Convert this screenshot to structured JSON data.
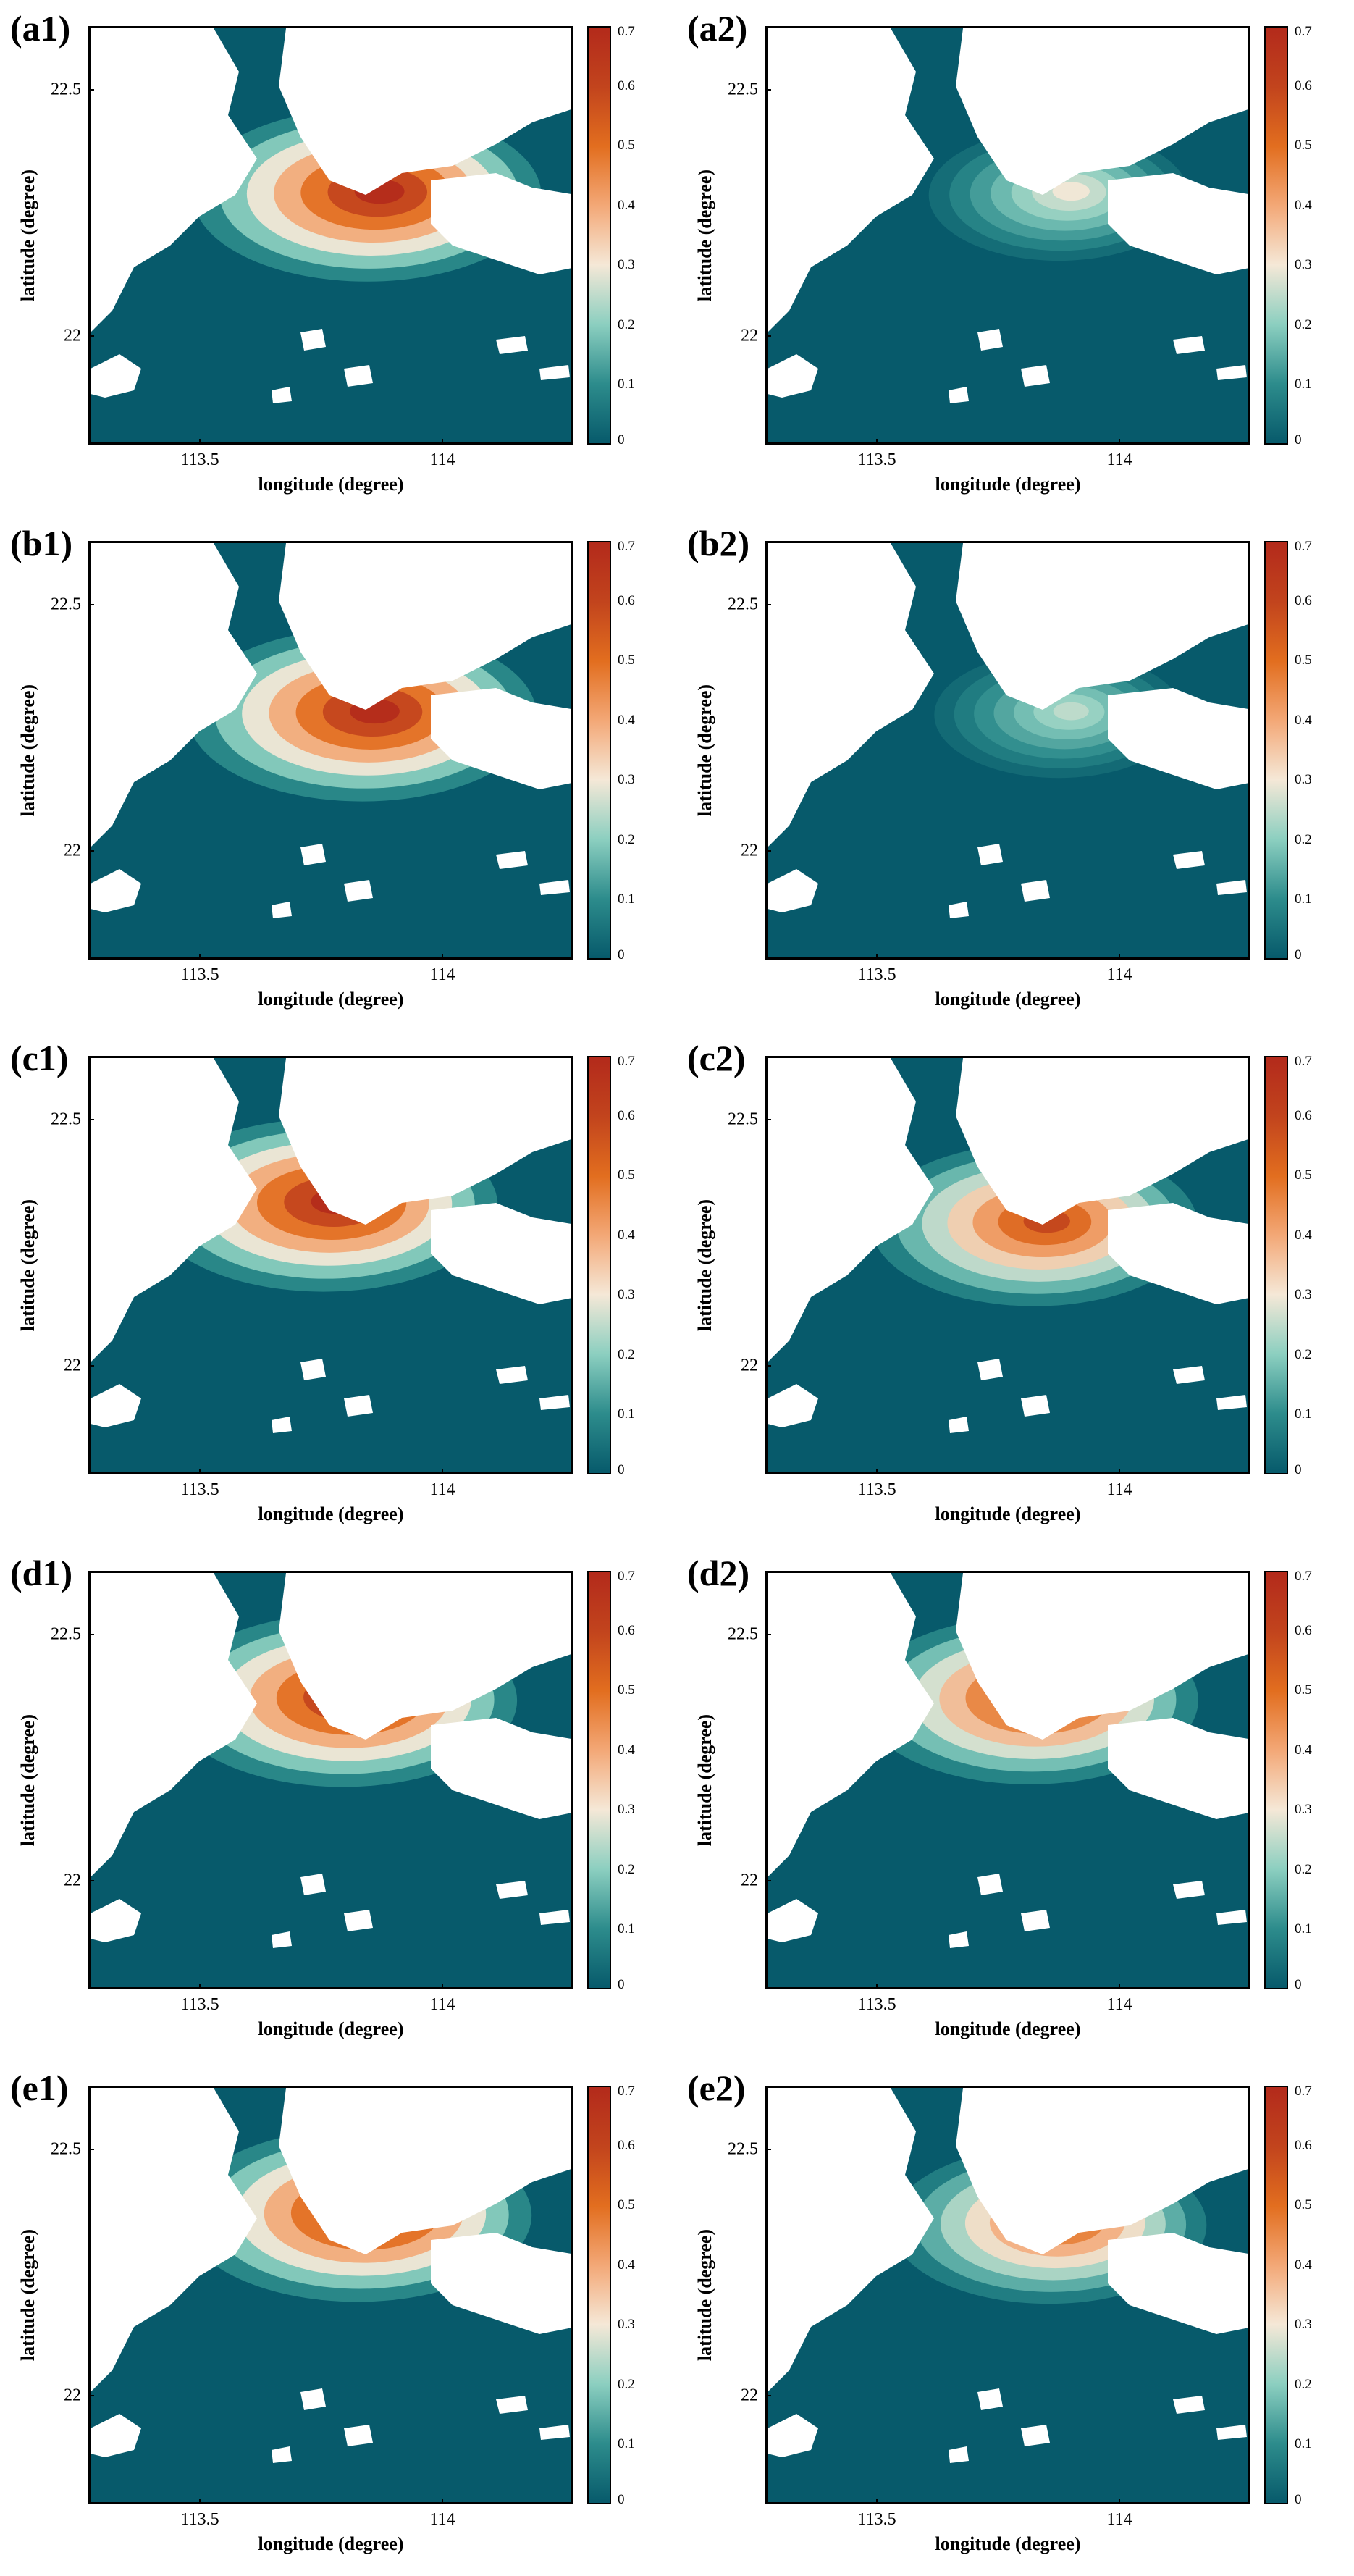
{
  "chart_data": [
    {
      "type": "heatmap",
      "panel_label": "(a1)",
      "xlabel": "longitude (degree)",
      "ylabel": "latitude (degree)",
      "xticks": [
        "113.5",
        "114"
      ],
      "yticks": [
        "22.5",
        "22"
      ],
      "colorbar": {
        "ticks": [
          "0",
          "0.1",
          "0.2",
          "0.3",
          "0.4",
          "0.5",
          "0.6",
          "0.7"
        ],
        "range": [
          0,
          0.7
        ]
      },
      "hotspot": {
        "center": [
          113.87,
          22.3
        ],
        "peak": 0.7
      }
    },
    {
      "type": "heatmap",
      "panel_label": "(a2)",
      "xlabel": "longitude (degree)",
      "ylabel": "latitude (degree)",
      "xticks": [
        "113.5",
        "114"
      ],
      "yticks": [
        "22.5",
        "22"
      ],
      "colorbar": {
        "ticks": [
          "0",
          "0.1",
          "0.2",
          "0.3",
          "0.4",
          "0.5",
          "0.6",
          "0.7"
        ],
        "range": [
          0,
          0.7
        ]
      },
      "hotspot": {
        "center": [
          113.9,
          22.3
        ],
        "peak": 0.3
      }
    },
    {
      "type": "heatmap",
      "panel_label": "(b1)",
      "xlabel": "longitude (degree)",
      "ylabel": "latitude (degree)",
      "xticks": [
        "113.5",
        "114"
      ],
      "yticks": [
        "22.5",
        "22"
      ],
      "colorbar": {
        "ticks": [
          "0",
          "0.1",
          "0.2",
          "0.3",
          "0.4",
          "0.5",
          "0.6",
          "0.7"
        ],
        "range": [
          0,
          0.7
        ]
      },
      "hotspot": {
        "center": [
          113.86,
          22.29
        ],
        "peak": 0.7
      }
    },
    {
      "type": "heatmap",
      "panel_label": "(b2)",
      "xlabel": "longitude (degree)",
      "ylabel": "latitude (degree)",
      "xticks": [
        "113.5",
        "114"
      ],
      "yticks": [
        "22.5",
        "22"
      ],
      "colorbar": {
        "ticks": [
          "0",
          "0.1",
          "0.2",
          "0.3",
          "0.4",
          "0.5",
          "0.6",
          "0.7"
        ],
        "range": [
          0,
          0.7
        ]
      },
      "hotspot": {
        "center": [
          113.9,
          22.29
        ],
        "peak": 0.25
      }
    },
    {
      "type": "heatmap",
      "panel_label": "(c1)",
      "xlabel": "longitude (degree)",
      "ylabel": "latitude (degree)",
      "xticks": [
        "113.5",
        "114"
      ],
      "yticks": [
        "22.5",
        "22"
      ],
      "colorbar": {
        "ticks": [
          "0",
          "0.1",
          "0.2",
          "0.3",
          "0.4",
          "0.5",
          "0.6",
          "0.7"
        ],
        "range": [
          0,
          0.7
        ]
      },
      "hotspot": {
        "center": [
          113.78,
          22.34
        ],
        "peak": 0.7
      }
    },
    {
      "type": "heatmap",
      "panel_label": "(c2)",
      "xlabel": "longitude (degree)",
      "ylabel": "latitude (degree)",
      "xticks": [
        "113.5",
        "114"
      ],
      "yticks": [
        "22.5",
        "22"
      ],
      "colorbar": {
        "ticks": [
          "0",
          "0.1",
          "0.2",
          "0.3",
          "0.4",
          "0.5",
          "0.6",
          "0.7"
        ],
        "range": [
          0,
          0.7
        ]
      },
      "hotspot": {
        "center": [
          113.85,
          22.3
        ],
        "peak": 0.6
      }
    },
    {
      "type": "heatmap",
      "panel_label": "(d1)",
      "xlabel": "longitude (degree)",
      "ylabel": "latitude (degree)",
      "xticks": [
        "113.5",
        "114"
      ],
      "yticks": [
        "22.5",
        "22"
      ],
      "colorbar": {
        "ticks": [
          "0",
          "0.1",
          "0.2",
          "0.3",
          "0.4",
          "0.5",
          "0.6",
          "0.7"
        ],
        "range": [
          0,
          0.7
        ]
      },
      "hotspot": {
        "center": [
          113.82,
          22.38
        ],
        "peak": 0.7
      }
    },
    {
      "type": "heatmap",
      "panel_label": "(d2)",
      "xlabel": "longitude (degree)",
      "ylabel": "latitude (degree)",
      "xticks": [
        "113.5",
        "114"
      ],
      "yticks": [
        "22.5",
        "22"
      ],
      "colorbar": {
        "ticks": [
          "0",
          "0.1",
          "0.2",
          "0.3",
          "0.4",
          "0.5",
          "0.6",
          "0.7"
        ],
        "range": [
          0,
          0.7
        ]
      },
      "hotspot": {
        "center": [
          113.84,
          22.38
        ],
        "peak": 0.65
      }
    },
    {
      "type": "heatmap",
      "panel_label": "(e1)",
      "xlabel": "longitude (degree)",
      "ylabel": "latitude (degree)",
      "xticks": [
        "113.5",
        "114"
      ],
      "yticks": [
        "22.5",
        "22"
      ],
      "colorbar": {
        "ticks": [
          "0",
          "0.1",
          "0.2",
          "0.3",
          "0.4",
          "0.5",
          "0.6",
          "0.7"
        ],
        "range": [
          0,
          0.7
        ]
      },
      "hotspot": {
        "center": [
          113.85,
          22.38
        ],
        "peak": 0.7
      }
    },
    {
      "type": "heatmap",
      "panel_label": "(e2)",
      "xlabel": "longitude (degree)",
      "ylabel": "latitude (degree)",
      "xticks": [
        "113.5",
        "114"
      ],
      "yticks": [
        "22.5",
        "22"
      ],
      "colorbar": {
        "ticks": [
          "0",
          "0.1",
          "0.2",
          "0.3",
          "0.4",
          "0.5",
          "0.6",
          "0.7"
        ],
        "range": [
          0,
          0.7
        ]
      },
      "hotspot": {
        "center": [
          113.88,
          22.36
        ],
        "peak": 0.55
      }
    }
  ],
  "colors": {
    "water": "#075a6b",
    "land": "#ffffff",
    "scale": [
      "#075a6b",
      "#2d8c8c",
      "#8ccfc0",
      "#f5e8d7",
      "#f3a877",
      "#e26e1f",
      "#c2441d",
      "#b32a1b"
    ]
  }
}
